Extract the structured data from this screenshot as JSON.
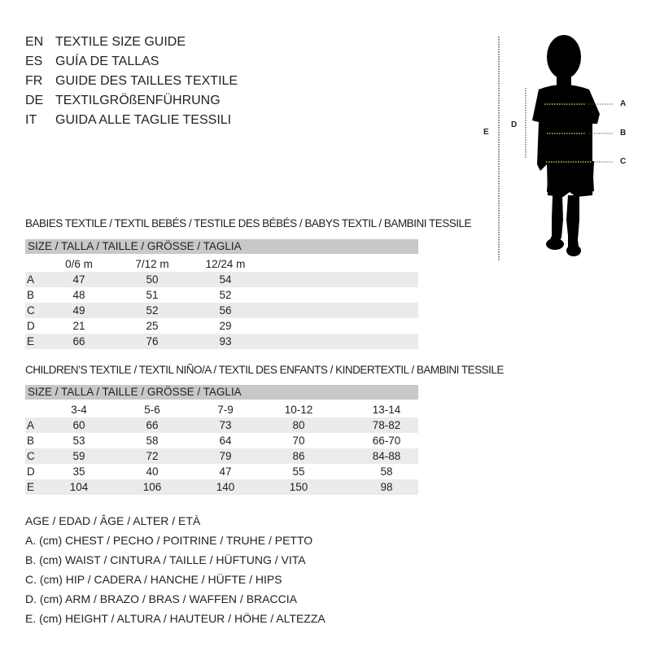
{
  "languages": [
    {
      "code": "EN",
      "title": "TEXTILE SIZE GUIDE"
    },
    {
      "code": "ES",
      "title": "GUÍA DE TALLAS"
    },
    {
      "code": "FR",
      "title": "GUIDE DES TAILLES TEXTILE"
    },
    {
      "code": "DE",
      "title": "TEXTILGRÖßENFÜHRUNG"
    },
    {
      "code": "IT",
      "title": "GUIDA ALLE TAGLIE TESSILI"
    }
  ],
  "figure": {
    "labels": {
      "A": "A",
      "B": "B",
      "C": "C",
      "D": "D",
      "E": "E"
    },
    "measure_line_color": "#e8e060"
  },
  "babies": {
    "title": "BABIES TEXTILE / TEXTIL BEBÉS / TESTILE DES BÉBÉS / BABYS TEXTIL / BAMBINI TESSILE",
    "size_header": "SIZE / TALLA / TAILLE / GRÖSSE / TAGLIA",
    "columns": [
      "0/6 m",
      "7/12 m",
      "12/24 m"
    ],
    "rows": [
      {
        "label": "A",
        "values": [
          "47",
          "50",
          "54"
        ]
      },
      {
        "label": "B",
        "values": [
          "48",
          "51",
          "52"
        ]
      },
      {
        "label": "C",
        "values": [
          "49",
          "52",
          "56"
        ]
      },
      {
        "label": "D",
        "values": [
          "21",
          "25",
          "29"
        ]
      },
      {
        "label": "E",
        "values": [
          "66",
          "76",
          "93"
        ]
      }
    ]
  },
  "children": {
    "title": "CHILDREN’S TEXTILE / TEXTIL NIÑO/A / TEXTIL DES ENFANTS / KINDERTEXTIL / BAMBINI TESSILE",
    "size_header": "SIZE / TALLA / TAILLE / GRÖSSE / TAGLIA",
    "columns": [
      "3-4",
      "5-6",
      "7-9",
      "10-12",
      "13-14"
    ],
    "rows": [
      {
        "label": "A",
        "values": [
          "60",
          "66",
          "73",
          "80",
          "78-82"
        ]
      },
      {
        "label": "B",
        "values": [
          "53",
          "58",
          "64",
          "70",
          "66-70"
        ]
      },
      {
        "label": "C",
        "values": [
          "59",
          "72",
          "79",
          "86",
          "84-88"
        ]
      },
      {
        "label": "D",
        "values": [
          "35",
          "40",
          "47",
          "55",
          "58"
        ]
      },
      {
        "label": "E",
        "values": [
          "104",
          "106",
          "140",
          "150",
          "98"
        ]
      }
    ]
  },
  "legend": [
    "AGE / EDAD / ÂGE / ALTER / ETÀ",
    "A. (cm) CHEST / PECHO / POITRINE / TRUHE / PETTO",
    "B. (cm) WAIST / CINTURA / TAILLE / HÜFTUNG / VITA",
    "C. (cm) HIP / CADERA / HANCHE / HÜFTE / HIPS",
    "D. (cm) ARM / BRAZO / BRAS / WAFFEN / BRACCIA",
    "E. (cm) HEIGHT / ALTURA / HAUTEUR / HÖHE / ALTEZZA"
  ]
}
